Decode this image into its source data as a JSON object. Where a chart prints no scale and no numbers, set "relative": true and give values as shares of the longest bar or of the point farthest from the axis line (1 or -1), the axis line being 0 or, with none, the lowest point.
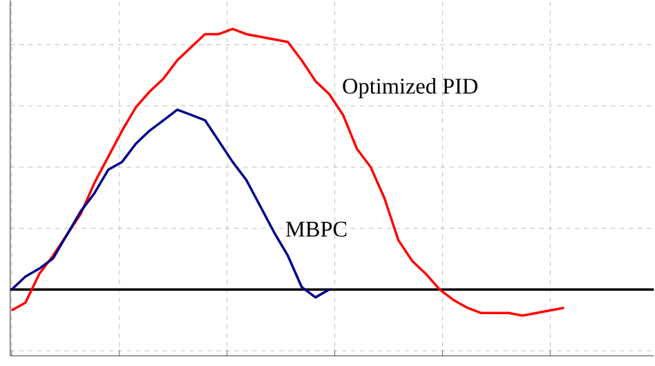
{
  "chart_data": {
    "type": "line",
    "relative": true,
    "ref_lines": [
      {
        "axis": "y",
        "value": 0,
        "color": "#000000"
      }
    ],
    "grid": true,
    "line_style": "solid",
    "marker": "none",
    "categories": [
      null,
      null,
      null,
      null,
      null,
      null,
      null,
      null,
      null,
      null,
      null,
      null,
      null,
      null,
      null,
      null,
      null,
      null,
      null,
      null,
      null,
      null,
      null,
      null,
      null,
      null,
      null,
      null,
      null,
      null,
      null,
      null,
      null,
      null,
      null,
      null,
      null,
      null,
      null,
      null,
      null
    ],
    "series": [
      {
        "name": "Optimized PID",
        "color": "#ff0000",
        "values": [
          -0.08,
          -0.05,
          0.06,
          0.13,
          0.21,
          0.29,
          0.41,
          0.51,
          0.61,
          0.7,
          0.76,
          0.81,
          0.88,
          0.93,
          0.98,
          0.98,
          1.0,
          0.98,
          0.97,
          0.96,
          0.95,
          0.88,
          0.8,
          0.75,
          0.67,
          0.54,
          0.47,
          0.35,
          0.19,
          0.11,
          0.06,
          0.0,
          -0.04,
          -0.07,
          -0.09,
          -0.09,
          -0.09,
          -0.1,
          -0.09,
          -0.08,
          -0.07
        ]
      },
      {
        "name": "MBPC",
        "color": "#00008b",
        "values": [
          0.0,
          0.05,
          0.08,
          0.12,
          0.21,
          0.3,
          0.37,
          0.46,
          0.49,
          0.56,
          0.61,
          0.65,
          0.69,
          0.67,
          0.65,
          0.57,
          0.49,
          0.42,
          0.32,
          0.22,
          0.13,
          0.01,
          -0.03,
          0.0,
          null,
          null,
          null,
          null,
          null,
          null,
          null,
          null,
          null,
          null,
          null,
          null,
          null,
          null,
          null,
          null,
          null
        ]
      }
    ]
  }
}
